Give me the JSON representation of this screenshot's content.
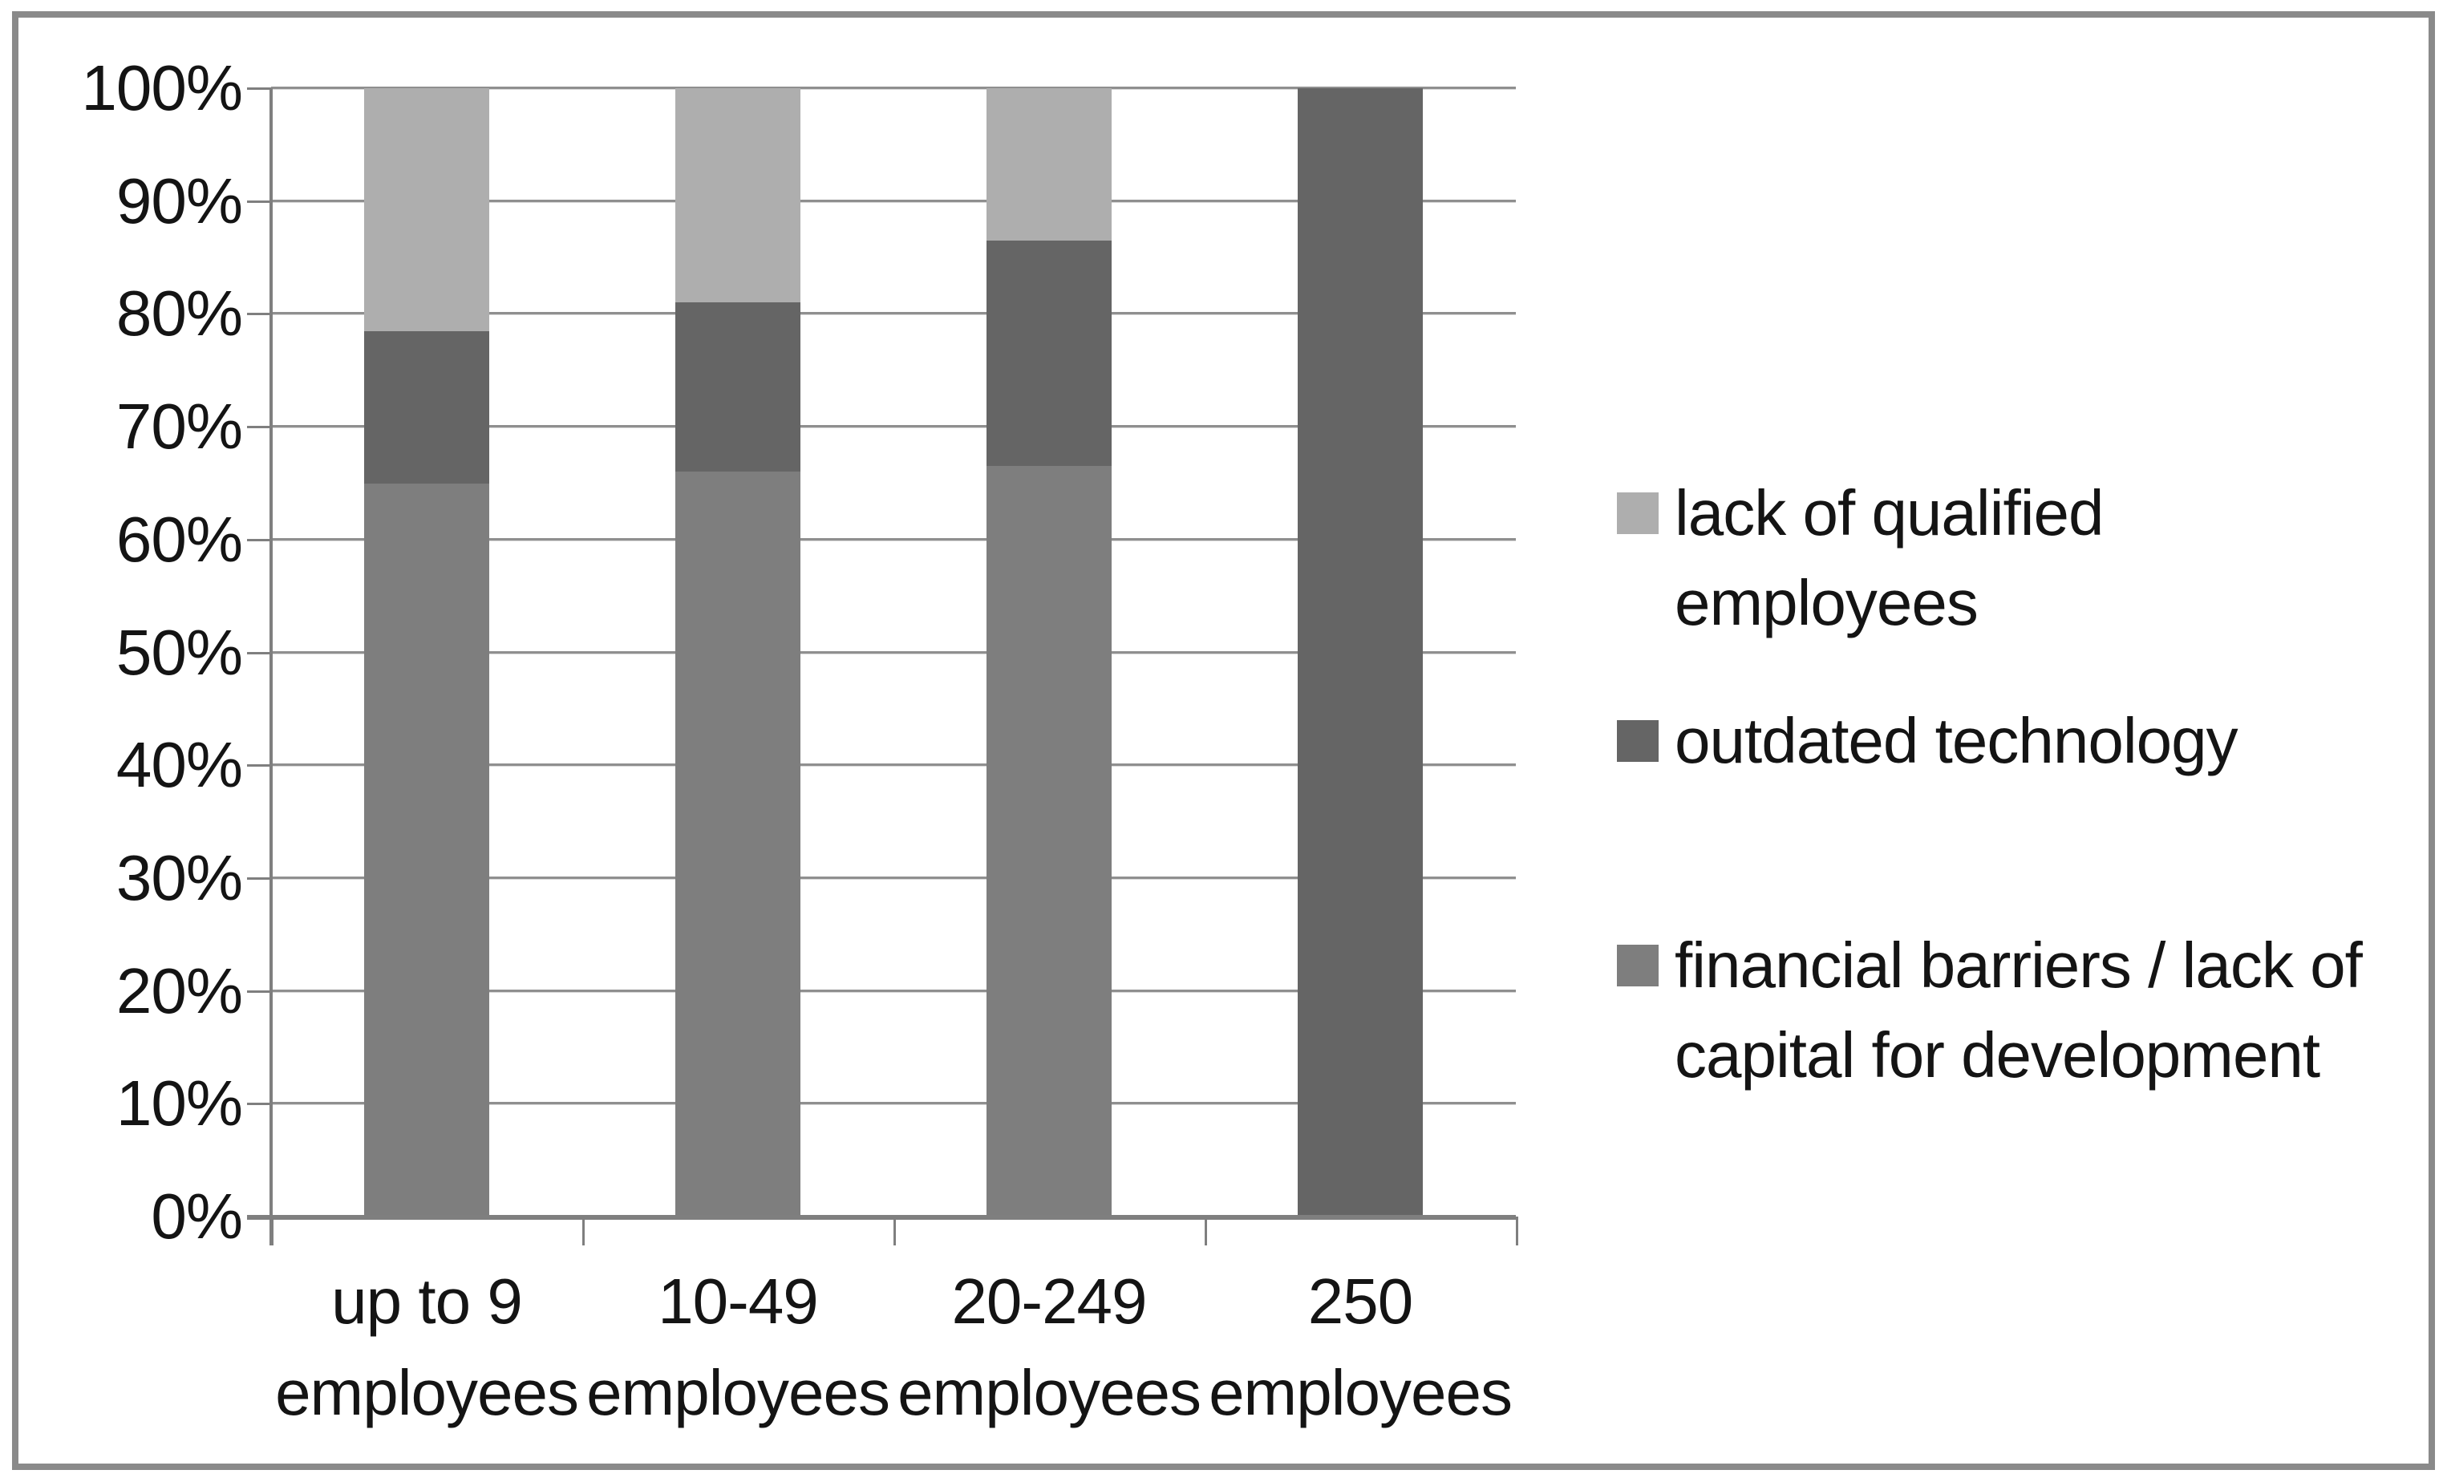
{
  "chart_data": {
    "type": "bar",
    "variant": "100%-stacked-column",
    "title": "",
    "xlabel": "",
    "ylabel": "",
    "grid": true,
    "legend_position": "right",
    "y_axis": {
      "min": 0,
      "max": 100,
      "step": 10,
      "unit": "%",
      "tick_labels": [
        "0%",
        "10%",
        "20%",
        "30%",
        "40%",
        "50%",
        "60%",
        "70%",
        "80%",
        "90%",
        "100%"
      ]
    },
    "categories": [
      "up to 9\nemployees",
      "10-49\nemployees",
      "20-249\nemployees",
      "250\nemployees"
    ],
    "series": [
      {
        "name": "financial barriers / lack of capital for development",
        "color": "#7e7e7e",
        "values": [
          65,
          66,
          66.5,
          0
        ]
      },
      {
        "name": "outdated technology",
        "color": "#656565",
        "values": [
          13.5,
          15,
          20,
          100
        ]
      },
      {
        "name": "lack of qualified employees",
        "color": "#aeaeae",
        "values": [
          21.5,
          19,
          13.5,
          0
        ]
      }
    ],
    "legend": [
      {
        "label": "lack of qualified\nemployees",
        "color": "#aeaeae"
      },
      {
        "label": "outdated technology",
        "color": "#656565"
      },
      {
        "label": "financial barriers / lack of\ncapital for development",
        "color": "#7e7e7e"
      }
    ]
  },
  "colors": {
    "gridline": "#8f8f8f",
    "axis": "#7f7f7f",
    "frame_border": "#8a8a8a",
    "background": "#ffffff",
    "text": "#141414"
  }
}
